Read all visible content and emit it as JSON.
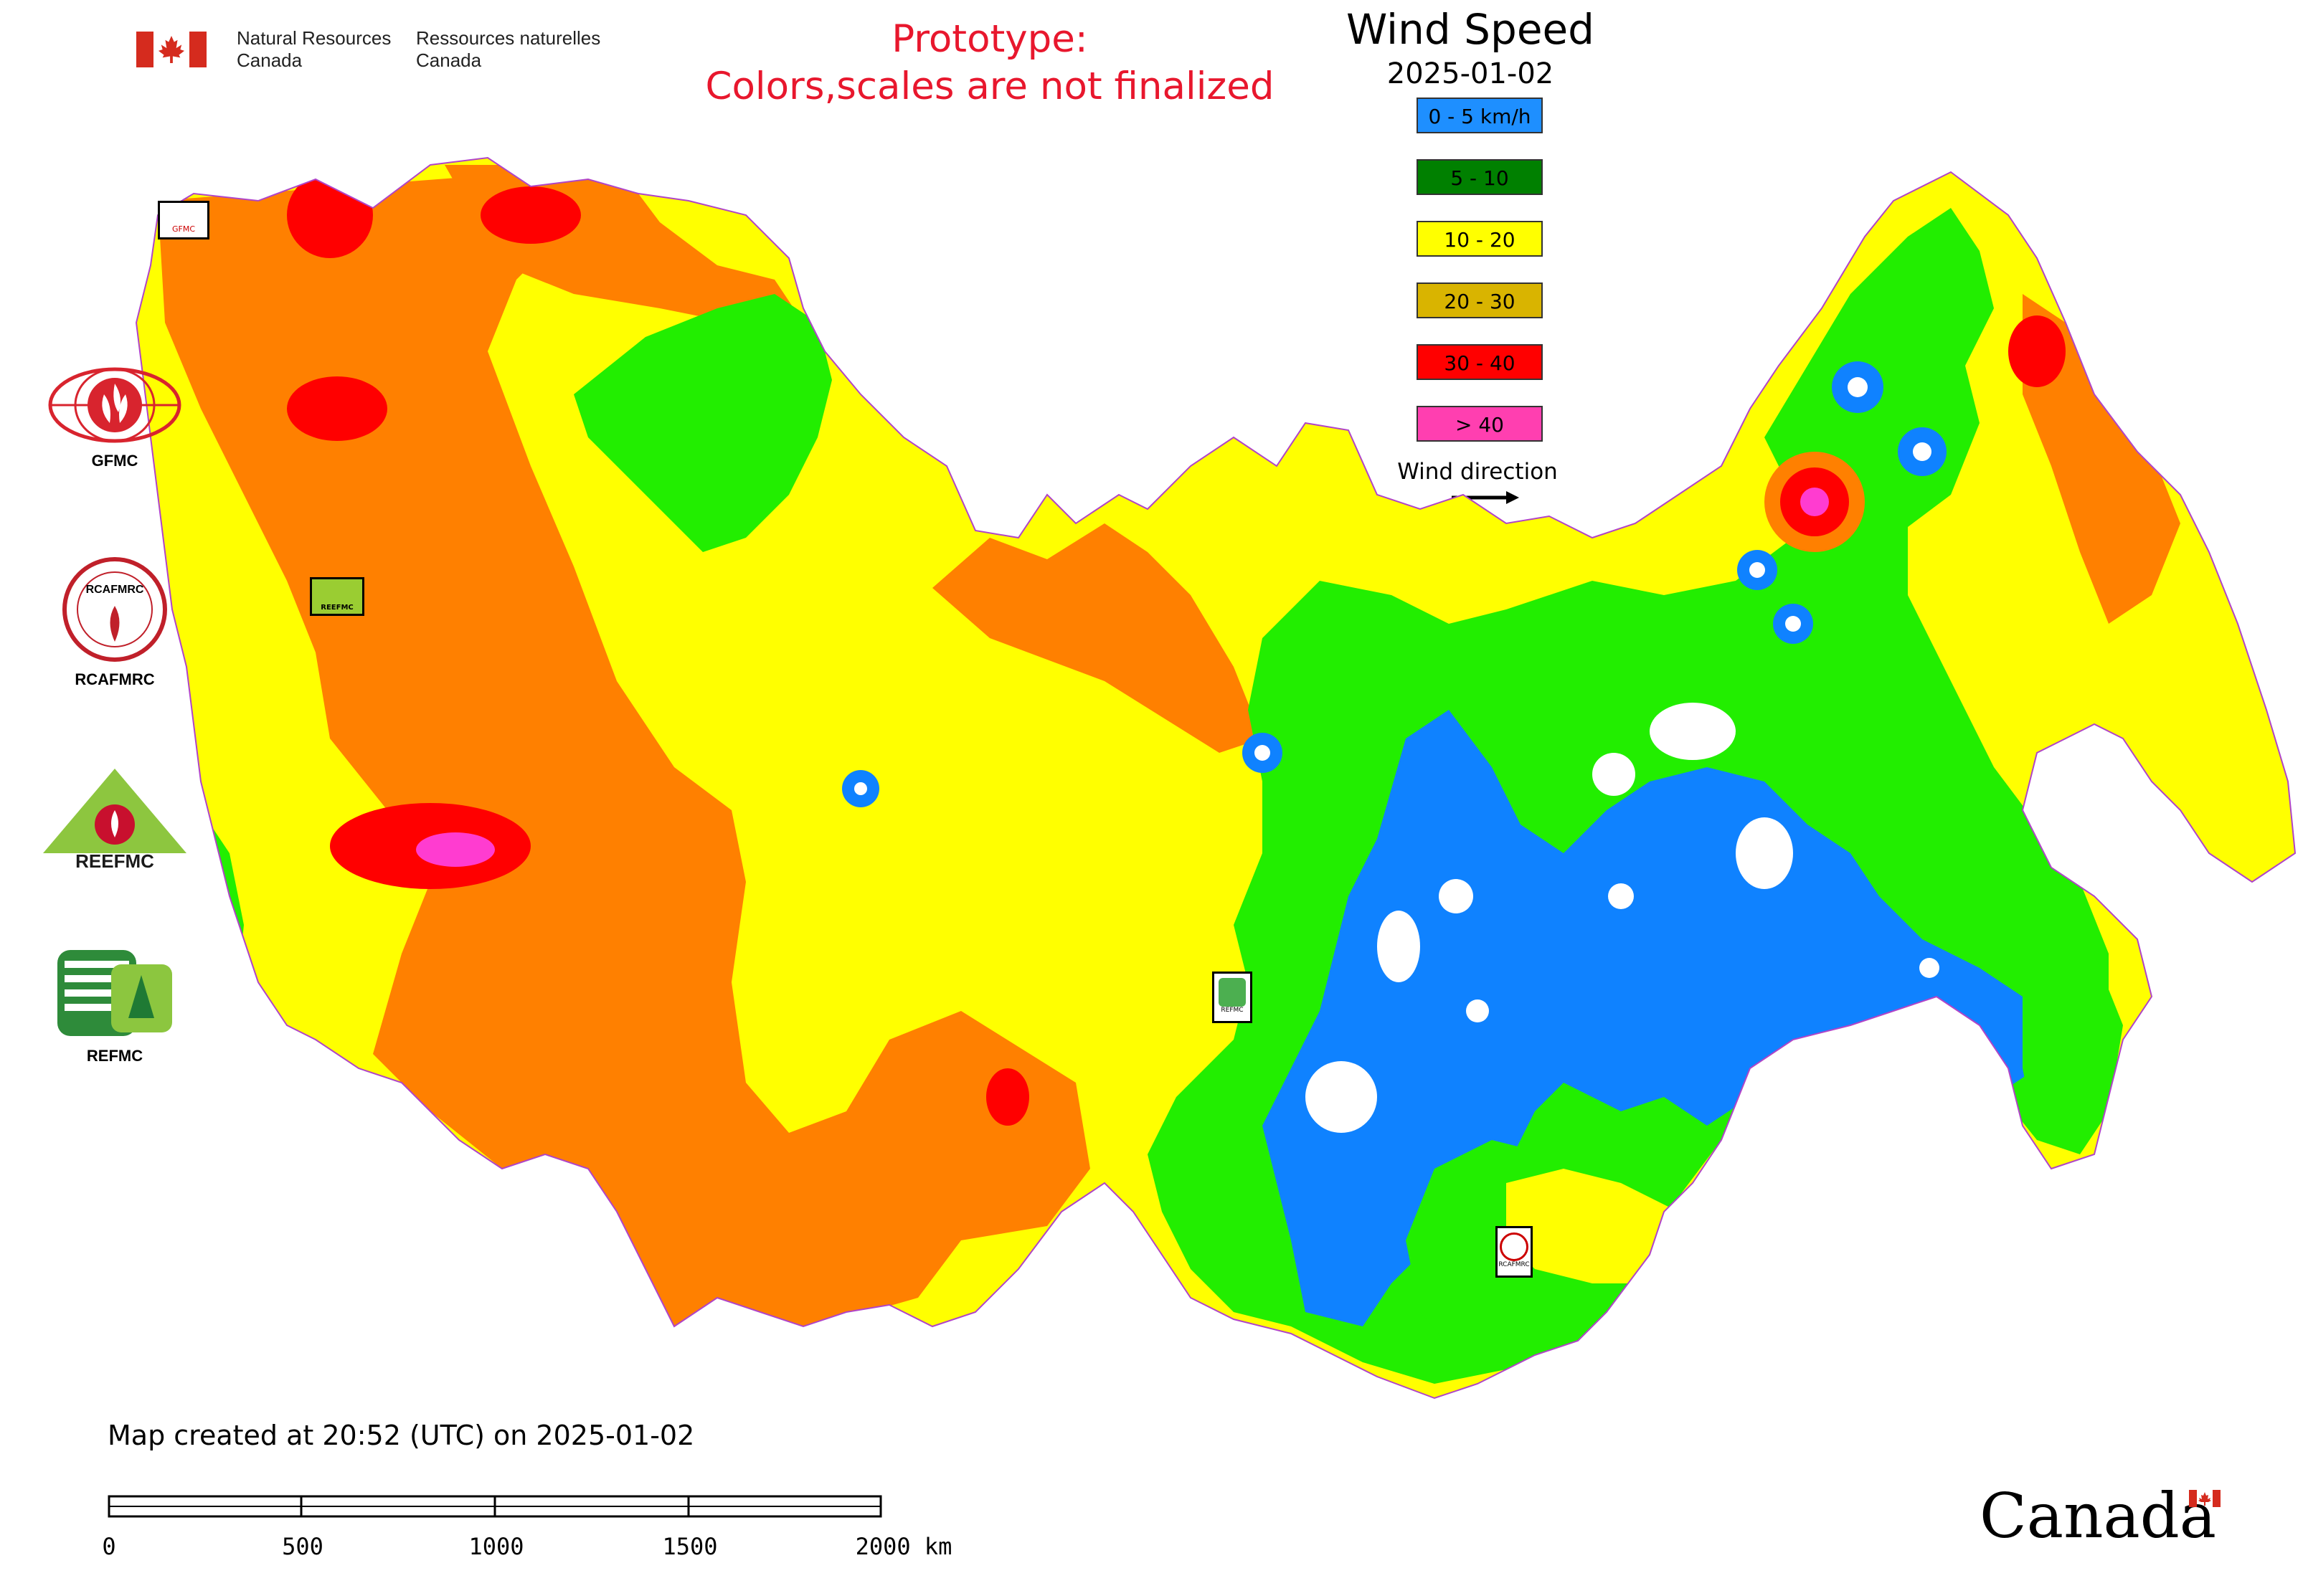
{
  "header": {
    "signature_en": [
      "Natural Resources",
      "Canada"
    ],
    "signature_fr": [
      "Ressources naturelles",
      "Canada"
    ],
    "notice": [
      "Prototype:",
      "Colors,scales are not finalized"
    ]
  },
  "legend": {
    "title": "Wind Speed",
    "date": "2025-01-02",
    "items": [
      {
        "label": "0 - 5 km/h",
        "color": "#1e8fff"
      },
      {
        "label": "5 - 10",
        "color": "#008000"
      },
      {
        "label": "10 - 20",
        "color": "#ffff00"
      },
      {
        "label": "20 - 30",
        "color": "#d9b400"
      },
      {
        "label": "30 - 40",
        "color": "#ff0000"
      },
      {
        "label": "> 40",
        "color": "#ff3fb0"
      }
    ],
    "wind_direction_label": "Wind direction"
  },
  "map": {
    "colors": {
      "orange": "#ff8000",
      "yellow": "#ffff00",
      "green": "#22ee00",
      "blue": "#0f82ff",
      "red": "#ff0000",
      "magenta": "#ff3cd0",
      "border": "#b044c8"
    },
    "stamps": [
      "GFMC",
      "REEFMC",
      "REFMC",
      "RCAFMRC"
    ]
  },
  "side_logos": [
    {
      "label": "GFMC"
    },
    {
      "label": "RCAFMRC",
      "emblem_text": "RCAFMRC"
    },
    {
      "label": "",
      "emblem_text": "REEFMC"
    },
    {
      "label": "REFMC"
    }
  ],
  "footer": {
    "created": "Map created at 20:52 (UTC) on 2025-01-02",
    "scale_labels": [
      "0",
      "500",
      "1000",
      "1500",
      "2000 km"
    ],
    "wordmark": "Canada"
  }
}
